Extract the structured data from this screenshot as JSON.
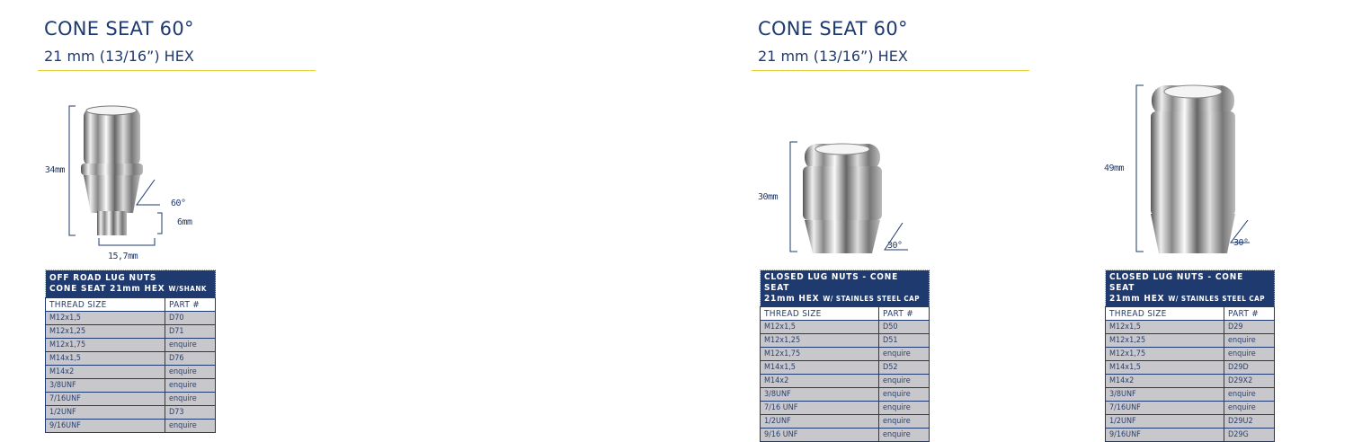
{
  "left": {
    "title": "CONE SEAT 60°",
    "subtitle": "21 mm (13/16”) HEX",
    "dims": {
      "height": "34mm",
      "angle": "60°",
      "shank": "6mm",
      "width": "15,7mm"
    },
    "table": {
      "header_line1": "OFF ROAD LUG NUTS",
      "header_line2": "CONE SEAT 21mm HEX",
      "header_suffix": "W/SHANK",
      "col_thread": "THREAD SIZE",
      "col_part": "PART #",
      "rows": [
        [
          "M12x1,5",
          "D70"
        ],
        [
          "M12x1,25",
          "D71"
        ],
        [
          "M12x1,75",
          "enquire"
        ],
        [
          "M14x1,5",
          "D76"
        ],
        [
          "M14x2",
          "enquire"
        ],
        [
          "3/8UNF",
          "enquire"
        ],
        [
          "7/16UNF",
          "enquire"
        ],
        [
          "1/2UNF",
          "D73"
        ],
        [
          "9/16UNF",
          "enquire"
        ]
      ]
    }
  },
  "right": {
    "title": "CONE SEAT 60°",
    "subtitle": "21 mm (13/16”) HEX",
    "nut_a": {
      "dims": {
        "height": "30mm",
        "angle": "30°"
      },
      "table": {
        "header_line1": "CLOSED LUG NUTS - CONE SEAT",
        "header_line2": "21mm HEX",
        "header_suffix": "W/ STAINLES STEEL CAP",
        "col_thread": "THREAD SIZE",
        "col_part": "PART #",
        "rows": [
          [
            "M12x1,5",
            "D50"
          ],
          [
            "M12x1,25",
            "D51"
          ],
          [
            "M12x1,75",
            "enquire"
          ],
          [
            "M14x1,5",
            "D52"
          ],
          [
            "M14x2",
            "enquire"
          ],
          [
            "3/8UNF",
            "enquire"
          ],
          [
            "7/16 UNF",
            "enquire"
          ],
          [
            "1/2UNF",
            "enquire"
          ],
          [
            "9/16 UNF",
            "enquire"
          ]
        ]
      }
    },
    "nut_b": {
      "dims": {
        "height": "49mm",
        "angle": "30°"
      },
      "table": {
        "header_line1": "CLOSED LUG NUTS - CONE SEAT",
        "header_line2": "21mm HEX",
        "header_suffix": "W/ STAINLES STEEL CAP",
        "col_thread": "THREAD SIZE",
        "col_part": "PART #",
        "rows": [
          [
            "M12x1,5",
            "D29"
          ],
          [
            "M12x1,25",
            "enquire"
          ],
          [
            "M12x1,75",
            "enquire"
          ],
          [
            "M14x1,5",
            "D29D"
          ],
          [
            "M14x2",
            "D29X2"
          ],
          [
            "3/8UNF",
            "enquire"
          ],
          [
            "7/16UNF",
            "enquire"
          ],
          [
            "1/2UNF",
            "D29U2"
          ],
          [
            "9/16UNF",
            "D29G"
          ]
        ]
      }
    }
  },
  "colors": {
    "navy": "#1f3a6e",
    "accent_rule": "#e6d23c",
    "row_gray": "#c8c8cc"
  }
}
